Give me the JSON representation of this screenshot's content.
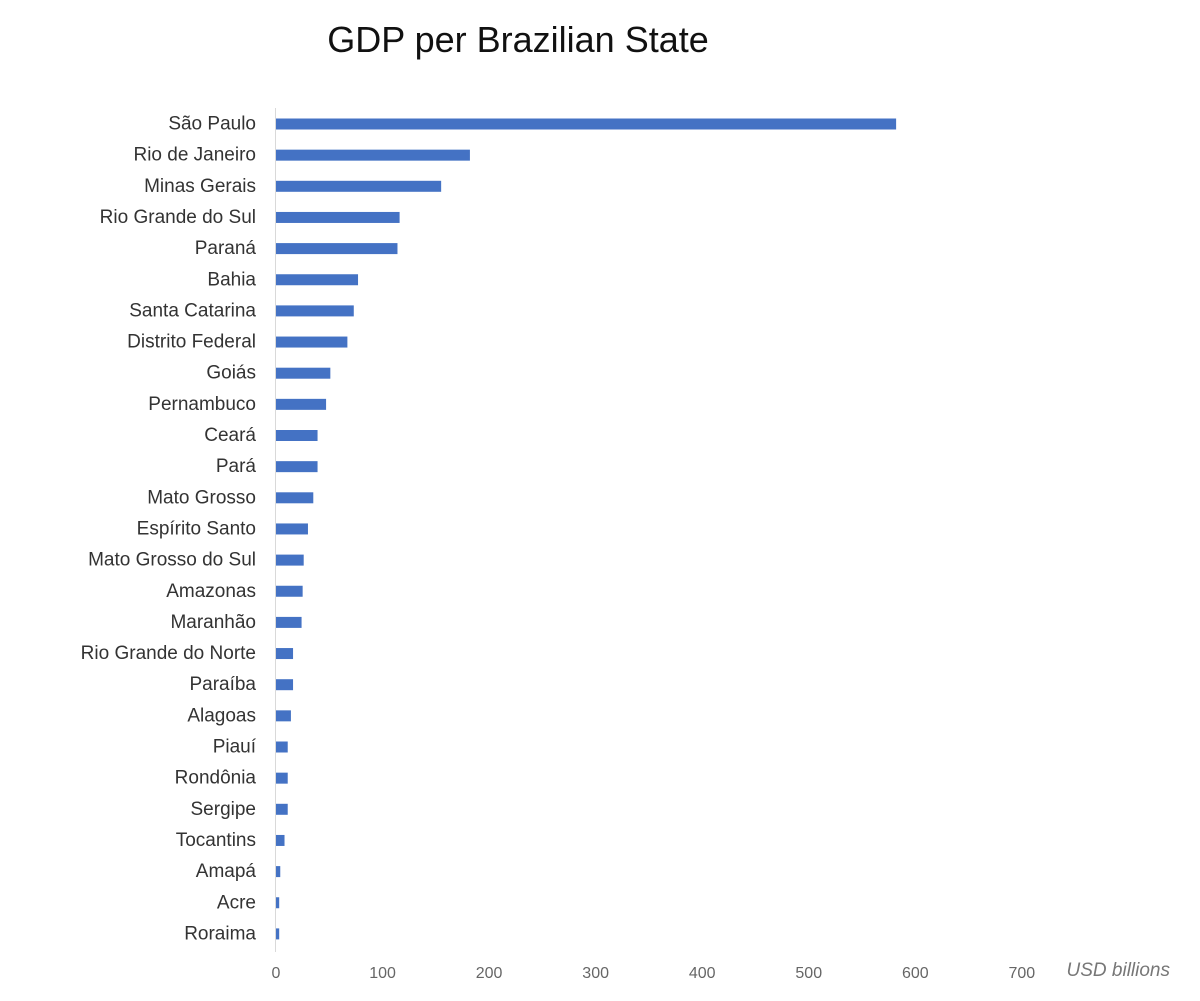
{
  "chart_data": {
    "type": "bar",
    "orientation": "horizontal",
    "title": "GDP per Brazilian State",
    "xlabel": "USD billions",
    "ylabel": "",
    "xlim": [
      0,
      700
    ],
    "x_ticks": [
      "0",
      "100",
      "200",
      "300",
      "400",
      "500",
      "600",
      "700"
    ],
    "grid": false,
    "bar_color": "#4472C4",
    "categories": [
      "São Paulo",
      "Rio de Janeiro",
      "Minas Gerais",
      "Rio Grande do Sul",
      "Paraná",
      "Bahia",
      "Santa Catarina",
      "Distrito Federal",
      "Goiás",
      "Pernambuco",
      "Ceará",
      "Pará",
      "Mato Grosso",
      "Espírito Santo",
      "Mato Grosso do Sul",
      "Amazonas",
      "Maranhão",
      "Rio Grande do Norte",
      "Paraíba",
      "Alagoas",
      "Piauí",
      "Rondônia",
      "Sergipe",
      "Tocantins",
      "Amapá",
      "Acre",
      "Roraima"
    ],
    "values": [
      582,
      182,
      155,
      116,
      114,
      77,
      73,
      67,
      51,
      47,
      39,
      39,
      35,
      30,
      26,
      25,
      24,
      16,
      16,
      14,
      11,
      11,
      11,
      8,
      4,
      3,
      3
    ]
  }
}
